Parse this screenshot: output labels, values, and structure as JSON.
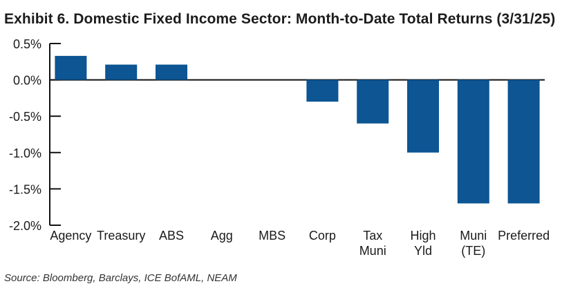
{
  "title": "Exhibit 6. Domestic Fixed Income Sector: Month-to-Date Total Returns (3/31/25)",
  "source": "Source: Bloomberg, Barclays, ICE BofAML, NEAM",
  "colors": {
    "bar": "#0d5593",
    "axis": "#111111",
    "text": "#1a1a1a"
  },
  "chart_data": {
    "type": "bar",
    "title": "Exhibit 6. Domestic Fixed Income Sector: Month-to-Date Total Returns (3/31/25)",
    "xlabel": "",
    "ylabel": "",
    "ylim": [
      -2.0,
      0.5
    ],
    "yticks": [
      0.5,
      0.0,
      -0.5,
      -1.0,
      -1.5,
      -2.0
    ],
    "ytick_labels": [
      "0.5%",
      "0.0%",
      "-0.5%",
      "-1.0%",
      "-1.5%",
      "-2.0%"
    ],
    "grid": false,
    "categories": [
      [
        "Agency"
      ],
      [
        "Treasury"
      ],
      [
        "ABS"
      ],
      [
        "Agg"
      ],
      [
        "MBS"
      ],
      [
        "Corp"
      ],
      [
        "Tax",
        "Muni"
      ],
      [
        "High",
        "Yld"
      ],
      [
        "Muni",
        "(TE)"
      ],
      [
        "Preferred"
      ]
    ],
    "values": [
      0.33,
      0.21,
      0.21,
      0.0,
      0.0,
      -0.3,
      -0.6,
      -1.0,
      -1.7,
      -1.7
    ]
  }
}
